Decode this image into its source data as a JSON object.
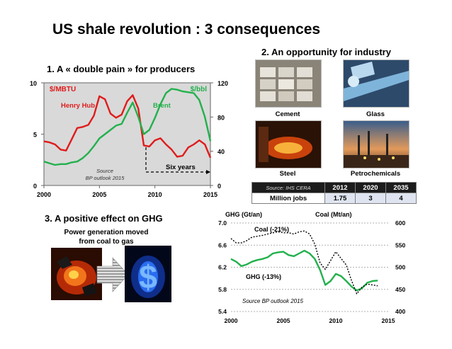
{
  "page": {
    "title": "US shale revolution : 3 consequences",
    "section1_title": "1. A « double pain » for producers",
    "section2_title": "2. An opportunity for industry",
    "section3_title": "3. A  positive effect on GHG",
    "power_caption_line1": "Power generation moved",
    "power_caption_line2": "from coal to gas"
  },
  "photos": [
    {
      "label": "Cement",
      "icon": "cement-bags-photo"
    },
    {
      "label": "Glass",
      "icon": "glass-photo"
    },
    {
      "label": "Steel",
      "icon": "steel-photo"
    },
    {
      "label": "Petrochemicals",
      "icon": "petrochemical-plant-photo"
    }
  ],
  "jobs_table": {
    "source": "Source: IHS CERA",
    "years": [
      "2012",
      "2020",
      "2035"
    ],
    "row_label": "Million jobs",
    "values": [
      "1.75",
      "3",
      "4"
    ]
  },
  "chart_data": [
    {
      "type": "line",
      "x_range": [
        2000,
        2015
      ],
      "x_ticks": [
        "2000",
        "2005",
        "2010",
        "2015"
      ],
      "y_left": {
        "label": "$/MBTU",
        "range": [
          0,
          10
        ],
        "ticks": [
          "0",
          "5",
          "10"
        ]
      },
      "y_right": {
        "label": "$/bbl",
        "range": [
          0,
          120
        ],
        "ticks": [
          "0",
          "40",
          "80",
          "120"
        ]
      },
      "series": [
        {
          "name": "Henry Hub",
          "axis": "left",
          "color": "#e01b1b",
          "x": [
            2000,
            2000.5,
            2001,
            2001.5,
            2002,
            2002.5,
            2003,
            2003.5,
            2004,
            2004.5,
            2005,
            2005.5,
            2006,
            2006.5,
            2007,
            2007.5,
            2008,
            2008.5,
            2009,
            2009.5,
            2010,
            2010.5,
            2011,
            2011.5,
            2012,
            2012.5,
            2013,
            2013.5,
            2014,
            2014.5,
            2015
          ],
          "values": [
            4.3,
            4.2,
            4.0,
            3.5,
            3.4,
            4.5,
            5.6,
            5.7,
            5.9,
            6.8,
            8.7,
            8.4,
            7.0,
            6.6,
            6.9,
            8.2,
            8.8,
            7.5,
            3.9,
            3.8,
            4.4,
            4.6,
            4.0,
            3.5,
            2.8,
            2.9,
            3.7,
            4.0,
            4.4,
            4.0,
            2.7
          ]
        },
        {
          "name": "Brent",
          "axis": "right",
          "color": "#22b14c",
          "x": [
            2000,
            2000.5,
            2001,
            2001.5,
            2002,
            2002.5,
            2003,
            2003.5,
            2004,
            2004.5,
            2005,
            2005.5,
            2006,
            2006.5,
            2007,
            2007.5,
            2008,
            2008.5,
            2009,
            2009.5,
            2010,
            2010.5,
            2011,
            2011.5,
            2012,
            2012.5,
            2013,
            2013.5,
            2014,
            2014.5,
            2015
          ],
          "values": [
            28,
            26,
            24,
            25,
            25,
            27,
            28,
            32,
            38,
            46,
            55,
            60,
            65,
            70,
            72,
            85,
            97,
            80,
            60,
            65,
            79,
            95,
            108,
            113,
            112,
            110,
            109,
            108,
            100,
            80,
            52
          ]
        }
      ],
      "annotations": [
        "Six years",
        "Source",
        "BP outlook 2015"
      ]
    },
    {
      "type": "line",
      "x_range": [
        2000,
        2015
      ],
      "x_ticks": [
        "2000",
        "2005",
        "2010",
        "2015"
      ],
      "y_left": {
        "label": "GHG (Gt/an)",
        "range": [
          5.4,
          7.0
        ],
        "ticks": [
          "5.4",
          "5.8",
          "6.2",
          "6.6",
          "7.0"
        ]
      },
      "y_right": {
        "label": "Coal (Mt/an)",
        "range": [
          400,
          600
        ],
        "ticks": [
          "400",
          "450",
          "500",
          "550",
          "600"
        ]
      },
      "series": [
        {
          "name": "GHG (-13%)",
          "axis": "left",
          "color": "#22b14c",
          "x": [
            2000,
            2000.5,
            2001,
            2001.5,
            2002,
            2002.5,
            2003,
            2003.5,
            2004,
            2004.5,
            2005,
            2005.5,
            2006,
            2006.5,
            2007,
            2007.5,
            2008,
            2008.5,
            2009,
            2009.5,
            2010,
            2010.5,
            2011,
            2011.5,
            2012,
            2012.5,
            2013,
            2013.5,
            2014
          ],
          "values": [
            6.35,
            6.3,
            6.22,
            6.25,
            6.3,
            6.33,
            6.35,
            6.38,
            6.45,
            6.47,
            6.48,
            6.42,
            6.4,
            6.45,
            6.5,
            6.45,
            6.35,
            6.15,
            5.88,
            5.95,
            6.08,
            6.04,
            5.95,
            5.85,
            5.78,
            5.82,
            5.92,
            5.95,
            5.96
          ]
        },
        {
          "name": "Coal (-21%)",
          "axis": "right",
          "color": "#000000",
          "x": [
            2000,
            2000.5,
            2001,
            2001.5,
            2002,
            2002.5,
            2003,
            2003.5,
            2004,
            2004.5,
            2005,
            2005.5,
            2006,
            2006.5,
            2007,
            2007.5,
            2008,
            2008.5,
            2009,
            2009.5,
            2010,
            2010.5,
            2011,
            2011.5,
            2012,
            2012.5,
            2013,
            2013.5,
            2014
          ],
          "values": [
            565,
            555,
            555,
            560,
            568,
            570,
            572,
            575,
            578,
            580,
            578,
            578,
            575,
            580,
            582,
            575,
            552,
            510,
            495,
            515,
            535,
            520,
            505,
            470,
            440,
            455,
            462,
            460,
            458
          ]
        }
      ],
      "annotations": [
        "Source BP outlook 2015"
      ]
    }
  ]
}
